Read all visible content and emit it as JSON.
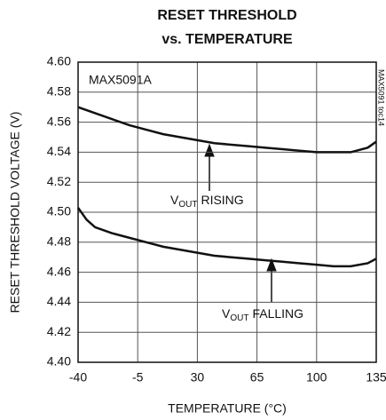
{
  "chart_data": {
    "type": "line",
    "title": [
      "RESET THRESHOLD",
      "vs. TEMPERATURE"
    ],
    "x_label": "TEMPERATURE (°C)",
    "y_label": "RESET THRESHOLD VOLTAGE (V)",
    "annotation": "MAX5091A",
    "figure_id": "MAX5091 toc14",
    "x": [
      -40,
      -35,
      -30,
      -20,
      -10,
      0,
      10,
      20,
      30,
      40,
      50,
      60,
      70,
      80,
      90,
      100,
      110,
      120,
      130,
      135
    ],
    "series": [
      {
        "name_parts": [
          "V",
          "OUT",
          "RISING"
        ],
        "color": "#111111",
        "values": [
          4.57,
          4.568,
          4.566,
          4.562,
          4.558,
          4.555,
          4.552,
          4.55,
          4.548,
          4.546,
          4.545,
          4.544,
          4.543,
          4.542,
          4.541,
          4.54,
          4.54,
          4.54,
          4.543,
          4.547
        ]
      },
      {
        "name_parts": [
          "V",
          "OUT",
          "FALLING"
        ],
        "color": "#111111",
        "values": [
          4.503,
          4.495,
          4.49,
          4.486,
          4.483,
          4.48,
          4.477,
          4.475,
          4.473,
          4.471,
          4.47,
          4.469,
          4.468,
          4.467,
          4.466,
          4.465,
          4.464,
          4.464,
          4.466,
          4.469
        ]
      }
    ],
    "xlim": [
      -40,
      135
    ],
    "xticks": [
      -40,
      -5,
      30,
      65,
      100,
      135
    ],
    "ylim": [
      4.4,
      4.6
    ],
    "yticks": [
      {
        "value": 4.4,
        "label": "4.40"
      },
      {
        "value": 4.42,
        "label": "4.42"
      },
      {
        "value": 4.44,
        "label": "4.44"
      },
      {
        "value": 4.46,
        "label": "4.46"
      },
      {
        "value": 4.48,
        "label": "4.48"
      },
      {
        "value": 4.5,
        "label": "4.50"
      },
      {
        "value": 4.52,
        "label": "4.52"
      },
      {
        "value": 4.54,
        "label": "4.54"
      },
      {
        "value": 4.56,
        "label": "4.56"
      },
      {
        "value": 4.58,
        "label": "4.58"
      },
      {
        "value": 4.6,
        "label": "4.60"
      }
    ],
    "grid": true
  }
}
